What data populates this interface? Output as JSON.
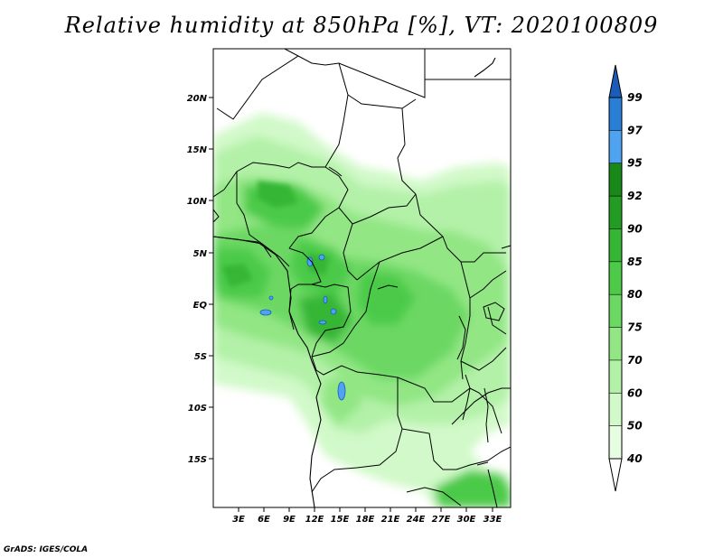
{
  "title": "Relative humidity at 850hPa [%], VT: 2020100809",
  "credit": "GrADS: IGES/COLA",
  "map": {
    "lat_labels": [
      "20N",
      "15N",
      "10N",
      "5N",
      "EQ",
      "5S",
      "10S",
      "15S"
    ],
    "lon_labels": [
      "3E",
      "6E",
      "9E",
      "12E",
      "15E",
      "18E",
      "21E",
      "24E",
      "27E",
      "30E",
      "33E"
    ],
    "variable": "Relative humidity",
    "units": "%",
    "level": "850hPa"
  },
  "colorbar": {
    "levels": [
      "40",
      "50",
      "60",
      "70",
      "75",
      "80",
      "85",
      "90",
      "92",
      "95",
      "97",
      "99"
    ],
    "colors": [
      "#ffffff",
      "#e6fde2",
      "#d1f9c9",
      "#b3f1a8",
      "#92e684",
      "#6cd864",
      "#4cca48",
      "#35b634",
      "#229c22",
      "#188818",
      "#4fa3f0",
      "#2a7ed6",
      "#1a5cb8"
    ]
  }
}
